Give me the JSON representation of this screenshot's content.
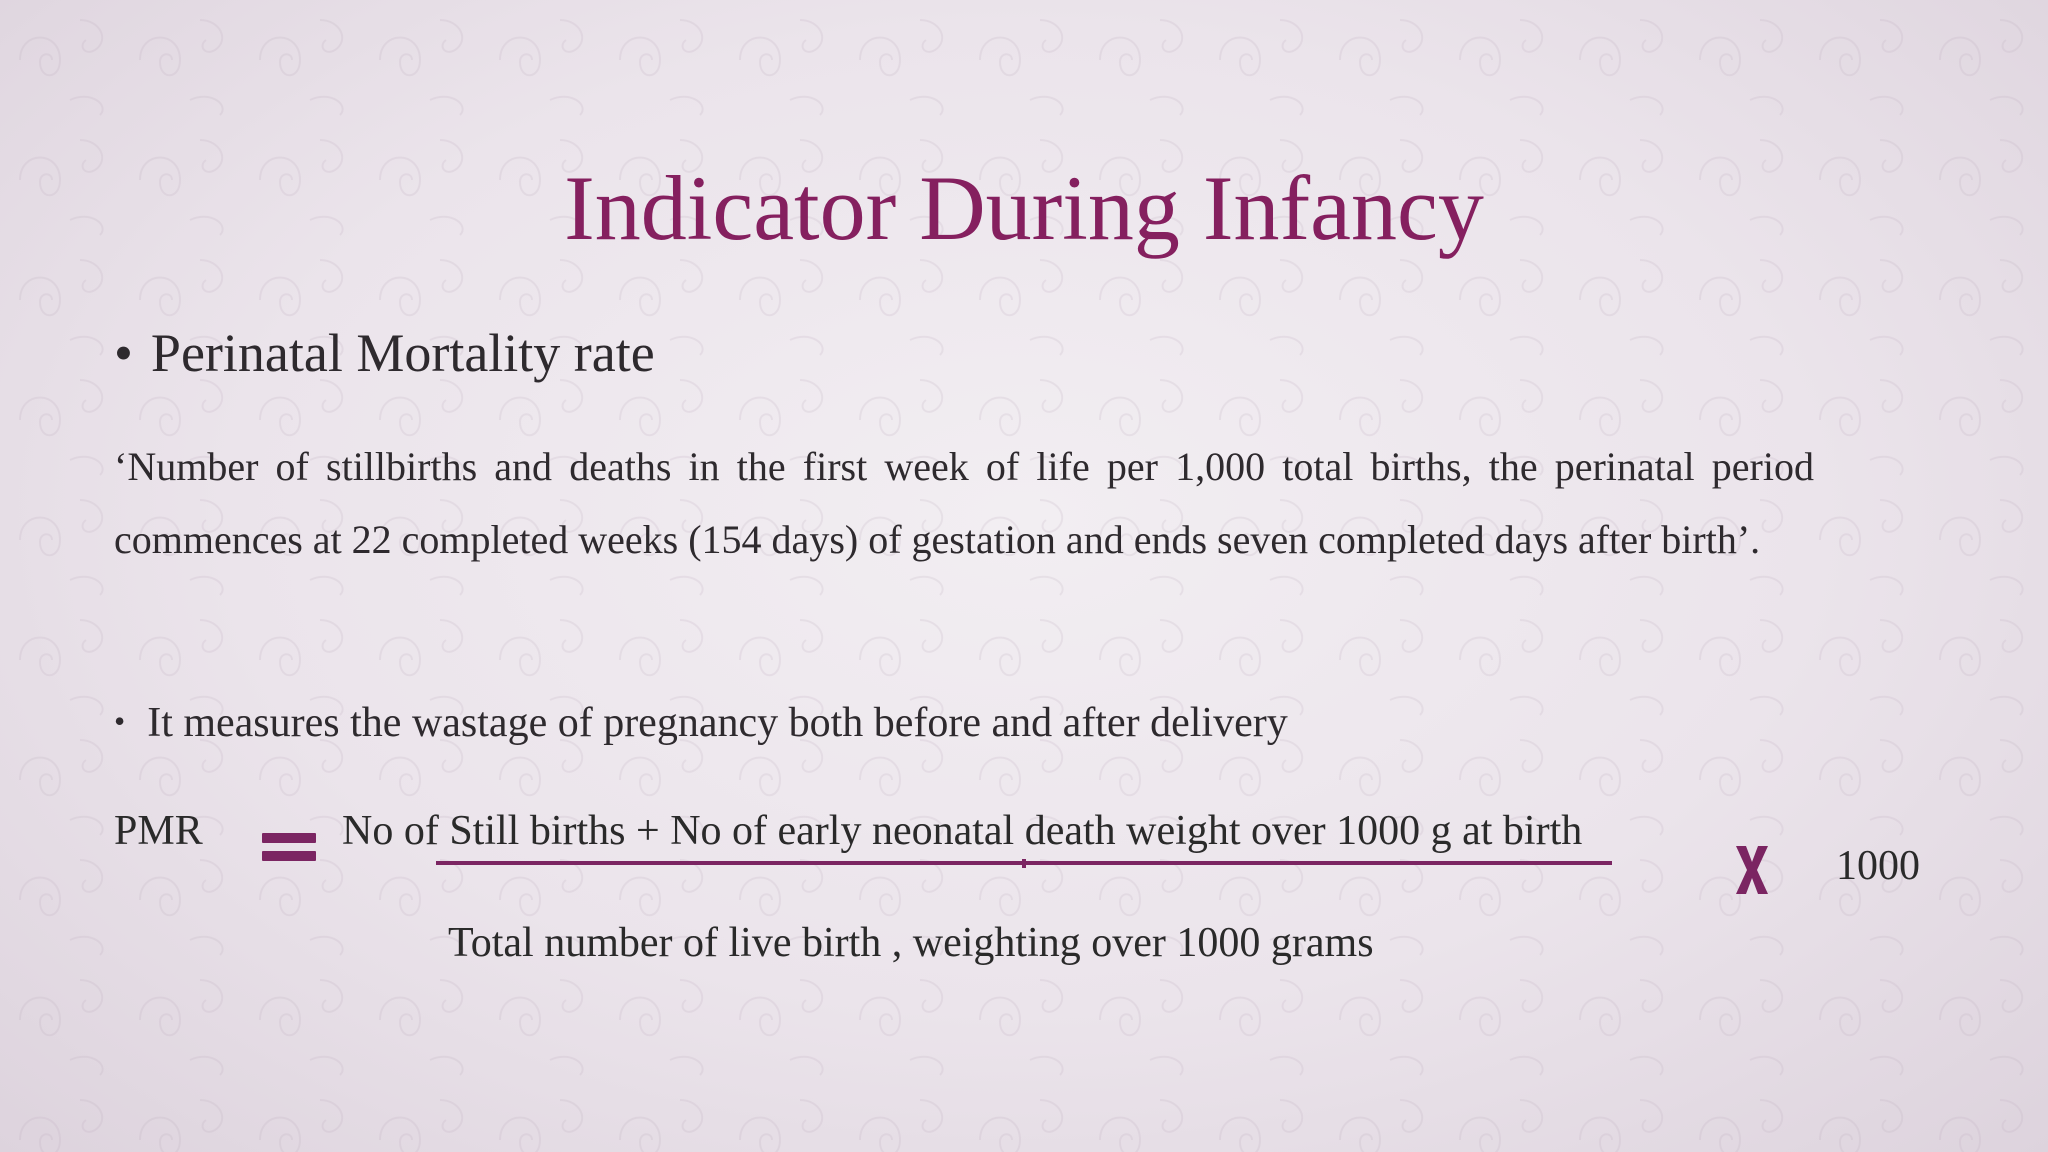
{
  "slide": {
    "title": "Indicator During Infancy",
    "bullets": [
      {
        "marker": "•",
        "text": "Perinatal Mortality rate"
      },
      {
        "marker": "•",
        "text": "It measures the wastage of pregnancy both before and after delivery"
      }
    ],
    "definition": "‘Number of stillbirths and deaths in the first week of life per 1,000 total births, the perinatal period commences at 22 completed weeks (154 days) of gestation and ends seven completed days after birth’.",
    "formula": {
      "label": "PMR",
      "numerator": "No of Still births + No of early neonatal death weight over 1000 g at birth",
      "denominator": "Total number of live birth , weighting over 1000 grams",
      "multiplier": "1000",
      "equals_icon": "equals-icon",
      "times_icon": "multiply-icon"
    },
    "colors": {
      "accent": "#85205f",
      "operator": "#7b2562",
      "text": "#2e2a2e",
      "background": "#ece6ec"
    }
  }
}
